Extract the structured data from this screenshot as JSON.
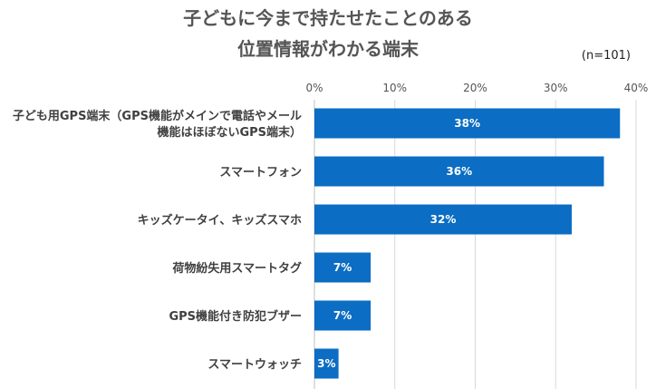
{
  "title": {
    "line1": "子どもに今まで持たせたことのある",
    "line2": "位置情報がわかる端末"
  },
  "sample_note": "(n=101)",
  "colors": {
    "bar": "#0B6DC3",
    "grid": "#D9D9D9",
    "axis": "#BFBFBF"
  },
  "chart_data": {
    "type": "bar",
    "orientation": "horizontal",
    "categories": [
      [
        "子ども用GPS端末（GPS機能がメインで電話やメール",
        "機能はほぼないGPS端末）"
      ],
      [
        "スマートフォン"
      ],
      [
        "キッズケータイ、キッズスマホ"
      ],
      [
        "荷物紛失用スマートタグ"
      ],
      [
        "GPS機能付き防犯ブザー"
      ],
      [
        "スマートウォッチ"
      ]
    ],
    "values": [
      38,
      36,
      32,
      7,
      7,
      3
    ],
    "data_labels": [
      "38%",
      "36%",
      "32%",
      "7%",
      "7%",
      "3%"
    ],
    "xlim": [
      0,
      40
    ],
    "x_ticks": [
      0,
      10,
      20,
      30,
      40
    ],
    "x_tick_labels": [
      "0%",
      "10%",
      "20%",
      "30%",
      "40%"
    ],
    "grid": true,
    "legend": "none"
  }
}
